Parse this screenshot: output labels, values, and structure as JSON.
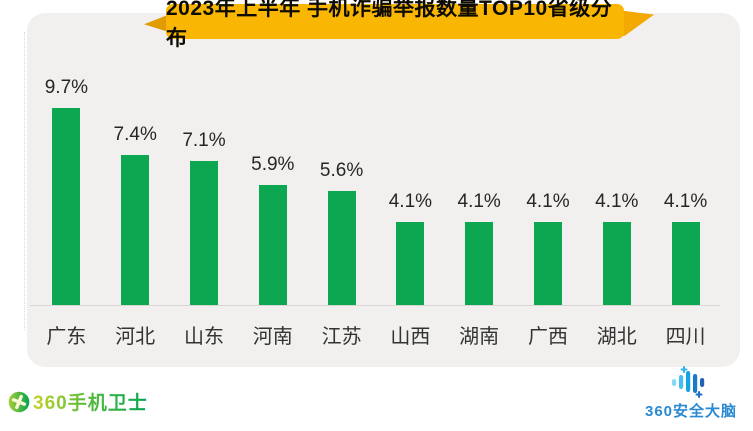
{
  "title": {
    "text": "2023年上半年 手机诈骗举报数量TOP10省级分布"
  },
  "chart_data": {
    "type": "bar",
    "title": "2023年上半年 手机诈骗举报数量TOP10省级分布",
    "categories": [
      "广东",
      "河北",
      "山东",
      "河南",
      "江苏",
      "山西",
      "湖南",
      "广西",
      "湖北",
      "四川"
    ],
    "values": [
      9.7,
      7.4,
      7.1,
      5.9,
      5.6,
      4.1,
      4.1,
      4.1,
      4.1,
      4.1
    ],
    "value_labels": [
      "9.7%",
      "7.4%",
      "7.1%",
      "5.9%",
      "5.6%",
      "4.1%",
      "4.1%",
      "4.1%",
      "4.1%",
      "4.1%"
    ],
    "xlabel": "",
    "ylabel": "",
    "ylim": [
      0,
      11.9
    ],
    "grid": false,
    "legend": false,
    "bar_color": "#0ca750",
    "value_label_color": "#262626",
    "category_label_color": "#333333"
  },
  "footer": {
    "left_logo": {
      "icon": "shield-plus-circle-icon",
      "text": "360手机卫士"
    },
    "right_logo": {
      "icon": "waveform-brain-icon",
      "text": "360安全大脑"
    }
  },
  "colors": {
    "ribbon_yellow": "#f9b602",
    "ribbon_fold_dark": "#e09c00",
    "card_background": "#f1f0ee",
    "axis_line": "#d8d7d4",
    "brand_green": "#00a64f",
    "brand_blue": "#2b8ad2"
  }
}
